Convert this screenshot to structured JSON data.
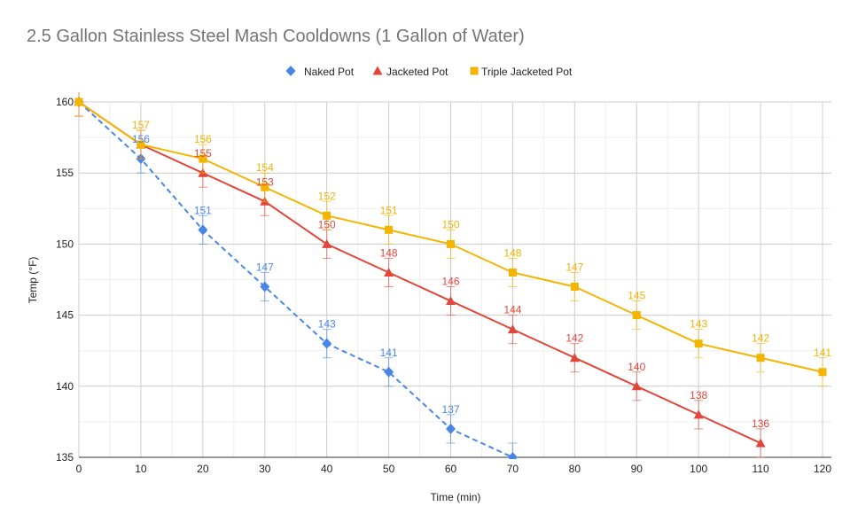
{
  "chart_data": {
    "type": "line",
    "title": "2.5 Gallon Stainless Steel Mash Cooldowns (1 Gallon of Water)",
    "xlabel": "Time (min)",
    "ylabel": "Temp (°F)",
    "xlim": [
      0,
      120
    ],
    "ylim": [
      135,
      160
    ],
    "xticks": [
      0,
      10,
      20,
      30,
      40,
      50,
      60,
      70,
      80,
      90,
      100,
      110,
      120
    ],
    "yticks": [
      135,
      140,
      145,
      150,
      155,
      160
    ],
    "grid": true,
    "legend_position": "top",
    "series": [
      {
        "name": "Naked Pot",
        "color": "#4a86e8",
        "marker": "diamond",
        "line_style": "dashed",
        "x": [
          0,
          10,
          20,
          30,
          40,
          50,
          60,
          70
        ],
        "y": [
          160,
          156,
          151,
          147,
          143,
          141,
          137,
          135
        ],
        "labels": [
          "",
          "156",
          "151",
          "147",
          "143",
          "141",
          "137",
          ""
        ],
        "error": 1
      },
      {
        "name": "Jacketed Pot",
        "color": "#e2463b",
        "marker": "triangle",
        "line_style": "solid",
        "x": [
          0,
          10,
          20,
          30,
          40,
          50,
          60,
          70,
          80,
          90,
          100,
          110
        ],
        "y": [
          160,
          157,
          155,
          153,
          150,
          148,
          146,
          144,
          142,
          140,
          138,
          136
        ],
        "labels": [
          "",
          "",
          "155",
          "153",
          "150",
          "148",
          "146",
          "144",
          "142",
          "140",
          "138",
          "136"
        ],
        "error": 1
      },
      {
        "name": "Triple Jacketed Pot",
        "color": "#f4b400",
        "marker": "square",
        "line_style": "solid",
        "x": [
          0,
          10,
          20,
          30,
          40,
          50,
          60,
          70,
          80,
          90,
          100,
          110,
          120
        ],
        "y": [
          160,
          157,
          156,
          154,
          152,
          151,
          150,
          148,
          147,
          145,
          143,
          142,
          141
        ],
        "labels": [
          "",
          "157",
          "156",
          "154",
          "152",
          "151",
          "150",
          "148",
          "147",
          "145",
          "143",
          "142",
          "141"
        ],
        "error": 1
      }
    ]
  }
}
